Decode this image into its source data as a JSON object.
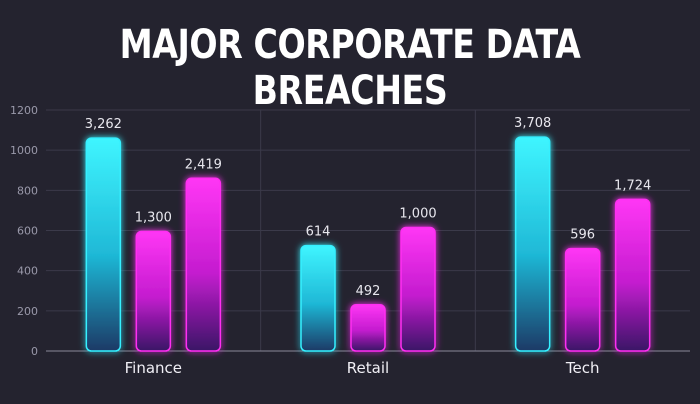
{
  "chart_data": {
    "type": "bar",
    "title": "MAJOR CORPORATE DATA BREACHES",
    "xlabel": "",
    "ylabel": "",
    "categories": [
      "Finance",
      "Retail",
      "Tech"
    ],
    "yticks": [
      "0",
      "200",
      "400",
      "600",
      "800",
      "1000",
      "1200"
    ],
    "ylim": [
      0,
      1200
    ],
    "grid": true,
    "colors": [
      "#35f0ff",
      "#ff2ef2",
      "#ff2ef2"
    ],
    "series": [
      {
        "values": [
          1060,
          525,
          1065
        ],
        "labels": [
          "3,262",
          "614",
          "3,708"
        ]
      },
      {
        "values": [
          595,
          230,
          510
        ],
        "labels": [
          "1,300",
          "492",
          "596"
        ]
      },
      {
        "values": [
          860,
          615,
          755
        ],
        "labels": [
          "2,419",
          "1,000",
          "1,724"
        ]
      }
    ]
  }
}
